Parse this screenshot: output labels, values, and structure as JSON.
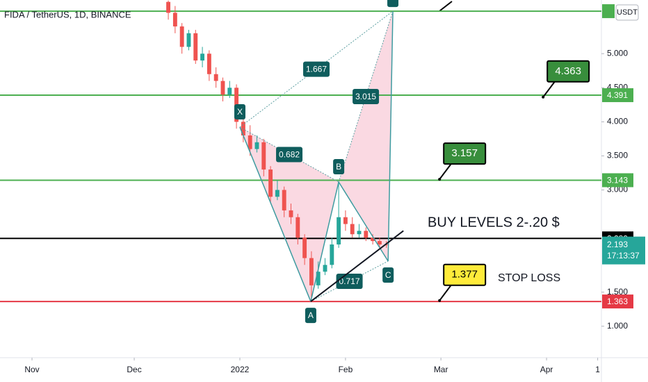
{
  "chart_data": {
    "type": "candlestick",
    "title": "FIDA / TetherUS, 1D, BINANCE",
    "currency": "USDT",
    "up_color": "#26a69a",
    "down_color": "#ef5350",
    "x": [
      40,
      42,
      44,
      46,
      48,
      50,
      52,
      54,
      56,
      58,
      60,
      62,
      64,
      66,
      68,
      70,
      72,
      74,
      76,
      78,
      80,
      82,
      84,
      86,
      88,
      90,
      92,
      94,
      96,
      98,
      100,
      102,
      104
    ],
    "open": [
      5.76,
      5.6,
      5.4,
      5.1,
      5.3,
      4.9,
      5.0,
      4.7,
      4.6,
      4.4,
      4.5,
      4.0,
      3.8,
      3.6,
      3.7,
      3.3,
      2.9,
      3.0,
      2.7,
      2.6,
      2.3,
      2.0,
      1.6,
      1.8,
      1.9,
      2.2,
      2.6,
      2.5,
      2.35,
      2.4,
      2.3,
      2.25,
      2.2
    ],
    "high": [
      5.78,
      5.7,
      5.45,
      5.35,
      5.35,
      5.1,
      5.05,
      4.8,
      4.65,
      4.6,
      4.55,
      4.1,
      3.95,
      3.8,
      3.75,
      3.35,
      3.14,
      3.05,
      2.8,
      2.65,
      2.35,
      2.1,
      1.95,
      2.0,
      2.3,
      3.1,
      2.7,
      2.6,
      2.5,
      2.45,
      2.35,
      2.3,
      2.25
    ],
    "low": [
      5.5,
      5.3,
      5.0,
      5.05,
      4.85,
      4.8,
      4.6,
      4.5,
      4.3,
      4.35,
      3.9,
      3.7,
      3.5,
      3.55,
      3.2,
      2.8,
      2.85,
      2.6,
      2.5,
      2.2,
      1.9,
      1.363,
      1.55,
      1.75,
      1.85,
      2.15,
      2.4,
      2.3,
      2.3,
      2.25,
      2.2,
      2.15,
      2.15
    ],
    "close": [
      5.6,
      5.4,
      5.1,
      5.3,
      4.9,
      5.0,
      4.7,
      4.6,
      4.4,
      4.5,
      4.0,
      3.8,
      3.6,
      3.7,
      3.3,
      2.9,
      3.0,
      2.7,
      2.6,
      2.3,
      2.0,
      1.6,
      1.8,
      1.9,
      2.2,
      2.6,
      2.5,
      2.35,
      2.4,
      2.3,
      2.25,
      2.2,
      2.193
    ],
    "xlim": [
      -9.39,
      167.1
    ],
    "ylim": [
      0.538,
      5.788
    ],
    "xticks": [
      {
        "value": 0,
        "label": "Nov"
      },
      {
        "value": 30,
        "label": "Dec"
      },
      {
        "value": 61,
        "label": "2022"
      },
      {
        "value": 92,
        "label": "Feb"
      },
      {
        "value": 120,
        "label": "Mar"
      },
      {
        "value": 151,
        "label": "Apr"
      },
      {
        "value": 166,
        "label": "1"
      }
    ],
    "yticks": [
      {
        "value": 5,
        "label": "5.000"
      },
      {
        "value": 4.5,
        "label": "4.500"
      },
      {
        "value": 4,
        "label": "4.000"
      },
      {
        "value": 3.5,
        "label": "3.500"
      },
      {
        "value": 3,
        "label": "3.000"
      },
      {
        "value": 1.5,
        "label": "1.500"
      },
      {
        "value": 1,
        "label": "1.000"
      }
    ],
    "levels": [
      {
        "value": 5.624,
        "color": "#4caf50"
      },
      {
        "value": 4.391,
        "color": "#4caf50"
      },
      {
        "value": 3.143,
        "color": "#4caf50"
      },
      {
        "value": 2.289,
        "color": "#000000"
      },
      {
        "value": 1.363,
        "color": "#e53945"
      }
    ],
    "last_price": 2.193,
    "countdown": "17:13:37",
    "pattern": [
      {
        "label": "X",
        "x": 61,
        "y": 3.922
      },
      {
        "label": "A",
        "x": 81.8,
        "y": 1.363
      },
      {
        "label": "B",
        "x": 90,
        "y": 3.117
      },
      {
        "label": "C",
        "x": 104.5,
        "y": 1.955
      },
      {
        "x": 105.9,
        "y": 5.624
      }
    ],
    "ratios": [
      "1.667",
      "0.682",
      "3.015",
      "0.717"
    ],
    "trendline": {
      "x": [
        81.8,
        109
      ],
      "y": [
        1.363,
        2.4
      ]
    },
    "callouts": [
      {
        "value": 4.363,
        "x": 150,
        "y": 4.363,
        "color": "#388e3c"
      },
      {
        "value": 3.157,
        "x": 119.6,
        "y": 3.157,
        "color": "#388e3c"
      },
      {
        "value": 1.377,
        "x": 119.6,
        "y": 1.377,
        "color": "#ffeb3b"
      }
    ],
    "buy_text": "BUY LEVELS 2-.20 $",
    "stop_text": "STOP LOSS"
  }
}
